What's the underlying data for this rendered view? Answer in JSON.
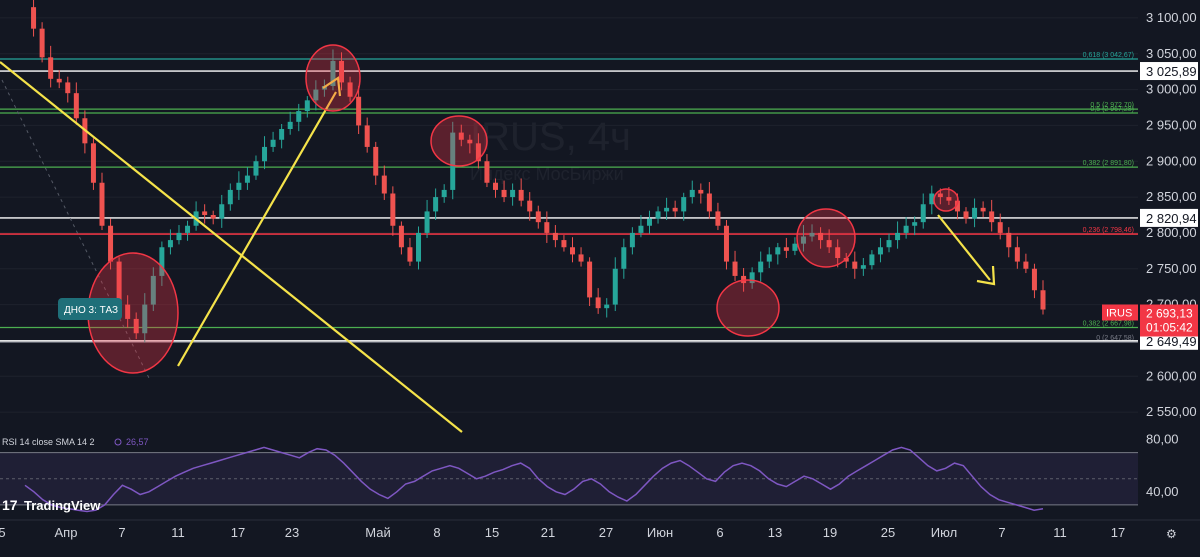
{
  "watermark": {
    "symbol": "IRUS, 4ч",
    "exchange": "Индекс МосБиржи"
  },
  "brand": {
    "name": "TradingView"
  },
  "price_axis": {
    "ticks": [
      {
        "label": "3 100,00",
        "value": 3100
      },
      {
        "label": "3 050,00",
        "value": 3050
      },
      {
        "label": "3 000,00",
        "value": 3000
      },
      {
        "label": "2 950,00",
        "value": 2950
      },
      {
        "label": "2 900,00",
        "value": 2900
      },
      {
        "label": "2 850,00",
        "value": 2850
      },
      {
        "label": "2 800,00",
        "value": 2800
      },
      {
        "label": "2 750,00",
        "value": 2750
      },
      {
        "label": "2 700,00",
        "value": 2700
      },
      {
        "label": "2 600,00",
        "value": 2600
      },
      {
        "label": "2 550,00",
        "value": 2550
      }
    ],
    "badges": [
      {
        "label": "3 025,89",
        "value": 3025.89,
        "style": "white"
      },
      {
        "label": "2 820,94",
        "value": 2820.94,
        "style": "white"
      },
      {
        "label": "2 649,49",
        "value": 2649.49,
        "style": "white"
      }
    ],
    "last_price": {
      "symbol": "IRUS",
      "price": "2 693,13",
      "countdown": "01:05:42",
      "value": 2693.13
    }
  },
  "time_axis": {
    "labels": [
      "5",
      "Апр",
      "7",
      "11",
      "17",
      "23",
      "Май",
      "8",
      "15",
      "21",
      "27",
      "Июн",
      "6",
      "13",
      "19",
      "25",
      "Июл",
      "7",
      "11",
      "17"
    ]
  },
  "levels": {
    "horizontal": [
      {
        "value": 3025.89,
        "color": "#ffffff"
      },
      {
        "value": 2820.94,
        "color": "#ffffff"
      },
      {
        "value": 2649.49,
        "color": "#ffffff"
      },
      {
        "value": 2798.46,
        "color": "#f23645"
      }
    ],
    "fib": [
      {
        "value": 3042.67,
        "label": "0,618 (3 042,67)",
        "color": "#26a69a"
      },
      {
        "value": 2972.7,
        "label": "0,5 (2 972,70)",
        "color": "#4caf50"
      },
      {
        "value": 2967.28,
        "label": "0,5 (2 967,28)",
        "color": "#4caf50"
      },
      {
        "value": 2891.8,
        "label": "0,382 (2 891,80)",
        "color": "#4caf50"
      },
      {
        "value": 2798.46,
        "label": "0,236 (2 798,46)",
        "color": "#f23645"
      },
      {
        "value": 2667.98,
        "label": "0,382 (2 667,98)",
        "color": "#4caf50"
      },
      {
        "value": 2647.58,
        "label": "0 (2 647,58)",
        "color": "#787b86"
      }
    ]
  },
  "annotation": {
    "label": "ДНО 3: ТАЗ"
  },
  "chart_data": {
    "type": "candlestick",
    "ylim": [
      2525,
      3125
    ],
    "close_series": [
      3115,
      3085,
      3045,
      3015,
      3010,
      2995,
      2960,
      2925,
      2870,
      2810,
      2760,
      2700,
      2680,
      2660,
      2700,
      2740,
      2780,
      2790,
      2800,
      2810,
      2830,
      2825,
      2820,
      2840,
      2860,
      2870,
      2880,
      2900,
      2920,
      2930,
      2945,
      2955,
      2970,
      2985,
      3000,
      3005,
      3040,
      3010,
      2990,
      2950,
      2920,
      2880,
      2855,
      2810,
      2780,
      2760,
      2800,
      2830,
      2850,
      2860,
      2940,
      2930,
      2925,
      2900,
      2870,
      2860,
      2850,
      2860,
      2845,
      2830,
      2815,
      2800,
      2790,
      2780,
      2770,
      2760,
      2710,
      2695,
      2700,
      2750,
      2780,
      2800,
      2810,
      2820,
      2830,
      2835,
      2830,
      2850,
      2860,
      2855,
      2830,
      2810,
      2760,
      2740,
      2730,
      2745,
      2760,
      2770,
      2780,
      2775,
      2785,
      2795,
      2800,
      2790,
      2780,
      2765,
      2760,
      2750,
      2755,
      2770,
      2780,
      2790,
      2800,
      2810,
      2815,
      2840,
      2855,
      2850,
      2845,
      2830,
      2820,
      2835,
      2830,
      2815,
      2800,
      2780,
      2760,
      2750,
      2720,
      2693.13
    ],
    "rsi": {
      "label": "RSI 14 close SMA 14 2",
      "value": "26,57",
      "upper": 70,
      "lower": 30,
      "axis_labels": [
        {
          "label": "80,00",
          "value": 80
        },
        {
          "label": "40,00",
          "value": 40
        }
      ],
      "series": [
        45,
        40,
        34,
        30,
        28,
        27,
        26,
        25,
        26,
        30,
        38,
        45,
        42,
        38,
        40,
        44,
        48,
        52,
        55,
        58,
        60,
        62,
        64,
        66,
        68,
        70,
        72,
        74,
        72,
        70,
        68,
        66,
        70,
        73,
        72,
        68,
        62,
        55,
        48,
        42,
        38,
        35,
        40,
        46,
        48,
        52,
        56,
        58,
        60,
        58,
        54,
        50,
        52,
        55,
        57,
        60,
        62,
        58,
        50,
        44,
        40,
        38,
        42,
        48,
        50,
        46,
        40,
        36,
        33,
        38,
        45,
        52,
        58,
        62,
        64,
        60,
        55,
        50,
        48,
        55,
        60,
        62,
        60,
        56,
        50,
        46,
        44,
        48,
        52,
        50,
        46,
        42,
        46,
        52,
        56,
        60,
        64,
        68,
        72,
        74,
        72,
        66,
        60,
        56,
        58,
        62,
        60,
        52,
        44,
        38,
        34,
        32,
        30,
        28,
        26,
        27
      ]
    }
  }
}
